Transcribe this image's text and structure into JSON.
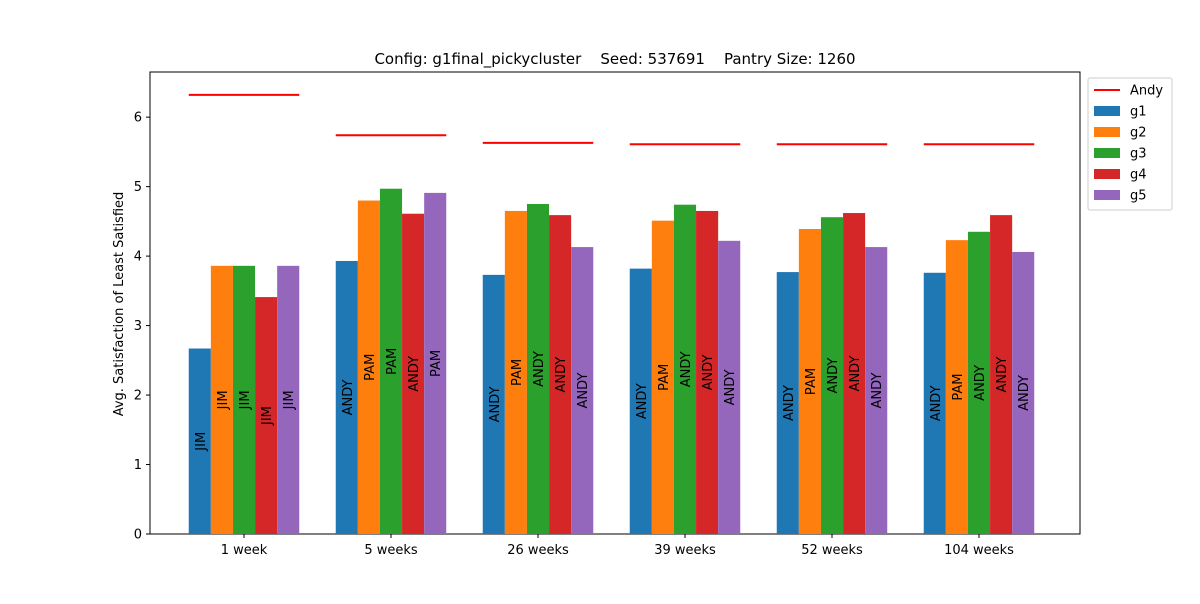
{
  "chart_data": {
    "type": "bar",
    "title": "Config: g1final_pickycluster    Seed: 537691    Pantry Size: 1260",
    "xlabel": "",
    "ylabel": "Avg. Satisfaction of Least Satisfied",
    "ylim": [
      0,
      6.65
    ],
    "yticks": [
      0,
      1,
      2,
      3,
      4,
      5,
      6
    ],
    "grid": false,
    "legend_position": "top-right outside",
    "categories": [
      "1 week",
      "5 weeks",
      "26 weeks",
      "39 weeks",
      "52 weeks",
      "104 weeks"
    ],
    "series": [
      {
        "name": "g1",
        "color": "#1f77b4",
        "values": [
          2.67,
          3.93,
          3.73,
          3.82,
          3.77,
          3.76
        ],
        "bar_labels": [
          "JIM",
          "ANDY",
          "ANDY",
          "ANDY",
          "ANDY",
          "ANDY"
        ]
      },
      {
        "name": "g2",
        "color": "#ff7f0e",
        "values": [
          3.86,
          4.8,
          4.65,
          4.51,
          4.39,
          4.23
        ],
        "bar_labels": [
          "JIM",
          "PAM",
          "PAM",
          "PAM",
          "PAM",
          "PAM"
        ]
      },
      {
        "name": "g3",
        "color": "#2ca02c",
        "values": [
          3.86,
          4.97,
          4.75,
          4.74,
          4.56,
          4.35
        ],
        "bar_labels": [
          "JIM",
          "PAM",
          "ANDY",
          "ANDY",
          "ANDY",
          "ANDY"
        ]
      },
      {
        "name": "g4",
        "color": "#d62728",
        "values": [
          3.41,
          4.61,
          4.59,
          4.65,
          4.62,
          4.59
        ],
        "bar_labels": [
          "JIM",
          "ANDY",
          "ANDY",
          "ANDY",
          "ANDY",
          "ANDY"
        ]
      },
      {
        "name": "g5",
        "color": "#9467bd",
        "values": [
          3.86,
          4.91,
          4.13,
          4.22,
          4.13,
          4.06
        ],
        "bar_labels": [
          "JIM",
          "PAM",
          "ANDY",
          "ANDY",
          "ANDY",
          "ANDY"
        ]
      }
    ],
    "reference_line": {
      "name": "Andy",
      "color": "#ff0000",
      "values": [
        6.32,
        5.74,
        5.63,
        5.61,
        5.61,
        5.61
      ]
    }
  }
}
